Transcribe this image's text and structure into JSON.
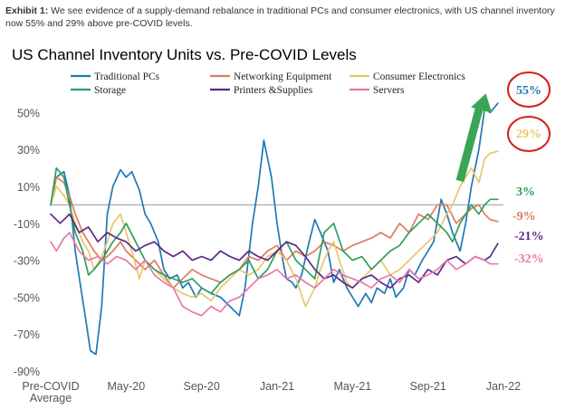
{
  "caption": {
    "label": "Exhibit 1:",
    "text": " We see evidence of a supply-demand rebalance in traditional PCs and consumer electronics, with US channel inventory now 55% and 29% above pre-COVID levels."
  },
  "chart_data": {
    "type": "line",
    "title": "US Channel Inventory Units vs. Pre-COVID Levels",
    "xlabel": "",
    "ylabel": "",
    "ylim": [
      -90,
      60
    ],
    "yticks": [
      50,
      30,
      10,
      -10,
      -30,
      -50,
      -70,
      -90
    ],
    "ytick_labels": [
      "50%",
      "30%",
      "10%",
      "-10%",
      "-30%",
      "-50%",
      "-70%",
      "-90%"
    ],
    "x_range": [
      0,
      24
    ],
    "xticks": [
      0,
      4,
      8,
      12,
      16,
      20,
      24
    ],
    "xtick_labels": [
      [
        "Pre-COVID",
        "Average"
      ],
      [
        "May-20"
      ],
      [
        "Sep-20"
      ],
      [
        "Jan-21"
      ],
      [
        "May-21"
      ],
      [
        "Sep-21"
      ],
      [
        "Jan-22"
      ]
    ],
    "reference_line": 0,
    "grid": false,
    "legend_position": "top",
    "series": [
      {
        "name": "Traditional PCs",
        "color": "#1f78b4",
        "end_label": "55%",
        "x": [
          0,
          0.3,
          0.7,
          1.0,
          1.3,
          1.6,
          1.9,
          2.1,
          2.4,
          2.7,
          3.0,
          3.3,
          3.7,
          4.0,
          4.3,
          4.7,
          5.0,
          5.3,
          5.7,
          6.0,
          6.3,
          6.7,
          7.0,
          7.3,
          7.7,
          8.0,
          8.5,
          9.0,
          9.5,
          10.0,
          10.3,
          10.7,
          11.0,
          11.3,
          11.7,
          12.0,
          12.3,
          12.5,
          12.8,
          13.0,
          13.3,
          13.7,
          14.0,
          14.3,
          14.7,
          15.0,
          15.3,
          15.7,
          16.0,
          16.3,
          16.7,
          17.0,
          17.3,
          17.7,
          18.0,
          18.3,
          18.7,
          19.0,
          19.3,
          19.7,
          20.0,
          20.3,
          20.7,
          21.0,
          21.3,
          21.7,
          22.0,
          22.3,
          22.7,
          23.0,
          23.3,
          23.7
        ],
        "values": [
          0,
          15,
          18,
          5,
          -25,
          -45,
          -65,
          -79,
          -81,
          -55,
          -5,
          10,
          19,
          15,
          18,
          8,
          -5,
          -10,
          -20,
          -35,
          -40,
          -38,
          -45,
          -42,
          -50,
          -45,
          -48,
          -50,
          -55,
          -60,
          -45,
          -10,
          10,
          35,
          15,
          -10,
          -30,
          -40,
          -42,
          -45,
          -38,
          -20,
          -8,
          -15,
          -25,
          -42,
          -35,
          -45,
          -50,
          -55,
          -48,
          -53,
          -45,
          -48,
          -40,
          -50,
          -45,
          -35,
          -38,
          -30,
          -25,
          -20,
          3,
          -5,
          -15,
          -25,
          -10,
          10,
          30,
          52,
          50,
          55
        ]
      },
      {
        "name": "Networking Equipment",
        "color": "#e07a5f",
        "end_label": "-9%",
        "x": [
          0,
          0.3,
          0.7,
          1.0,
          1.3,
          1.7,
          2.0,
          2.3,
          2.7,
          3.0,
          3.3,
          3.7,
          4.0,
          4.5,
          5.0,
          5.5,
          6.0,
          6.5,
          7.0,
          7.5,
          8.0,
          8.5,
          9.0,
          9.5,
          10.0,
          10.5,
          11.0,
          11.5,
          12.0,
          12.5,
          13.0,
          13.5,
          14.0,
          14.5,
          15.0,
          15.5,
          16.0,
          16.5,
          17.0,
          17.5,
          18.0,
          18.5,
          19.0,
          19.5,
          20.0,
          20.5,
          21.0,
          21.5,
          22.0,
          22.3,
          22.7,
          23.0,
          23.3,
          23.7
        ],
        "values": [
          0,
          15,
          12,
          5,
          -5,
          -15,
          -20,
          -25,
          -30,
          -28,
          -25,
          -20,
          -25,
          -30,
          -35,
          -30,
          -38,
          -45,
          -40,
          -35,
          -38,
          -40,
          -42,
          -38,
          -35,
          -28,
          -30,
          -25,
          -22,
          -30,
          -25,
          -28,
          -25,
          -20,
          -22,
          -25,
          -22,
          -20,
          -18,
          -15,
          -18,
          -10,
          -15,
          -5,
          -8,
          0,
          0,
          -10,
          -5,
          -2,
          0,
          -5,
          -8,
          -9
        ]
      },
      {
        "name": "Consumer Electronics",
        "color": "#e8c66a",
        "end_label": "29%",
        "x": [
          0,
          0.3,
          0.7,
          1.0,
          1.3,
          1.7,
          2.0,
          2.3,
          2.7,
          3.0,
          3.3,
          3.7,
          4.0,
          4.3,
          4.7,
          5.0,
          5.5,
          6.0,
          6.5,
          7.0,
          7.5,
          8.0,
          8.5,
          9.0,
          9.5,
          10.0,
          10.5,
          11.0,
          11.5,
          12.0,
          12.5,
          13.0,
          13.5,
          14.0,
          14.3,
          14.7,
          15.0,
          15.3,
          15.7,
          16.0,
          16.5,
          17.0,
          17.5,
          18.0,
          18.5,
          19.0,
          19.5,
          20.0,
          20.5,
          21.0,
          21.3,
          21.7,
          22.0,
          22.3,
          22.7,
          23.0,
          23.3,
          23.7
        ],
        "values": [
          0,
          10,
          5,
          0,
          -10,
          -20,
          -25,
          -35,
          -28,
          -20,
          -10,
          -5,
          -15,
          -25,
          -40,
          -30,
          -35,
          -40,
          -45,
          -48,
          -50,
          -48,
          -52,
          -45,
          -40,
          -35,
          -38,
          -35,
          -28,
          -25,
          -30,
          -40,
          -55,
          -45,
          -35,
          -25,
          -20,
          -30,
          -42,
          -45,
          -40,
          -35,
          -30,
          -38,
          -35,
          -30,
          -25,
          -20,
          -15,
          -5,
          0,
          10,
          15,
          20,
          12,
          25,
          28,
          29
        ]
      },
      {
        "name": "Storage",
        "color": "#2e9e5b",
        "end_label": "3%",
        "x": [
          0,
          0.3,
          0.7,
          1.0,
          1.3,
          1.7,
          2.0,
          2.3,
          2.7,
          3.0,
          3.3,
          3.7,
          4.0,
          4.5,
          5.0,
          5.5,
          6.0,
          6.5,
          7.0,
          7.5,
          8.0,
          8.5,
          9.0,
          9.5,
          10.0,
          10.5,
          11.0,
          11.5,
          12.0,
          12.5,
          13.0,
          13.5,
          14.0,
          14.5,
          15.0,
          15.5,
          16.0,
          16.5,
          17.0,
          17.5,
          18.0,
          18.5,
          19.0,
          19.5,
          20.0,
          20.5,
          21.0,
          21.3,
          21.7,
          22.0,
          22.3,
          22.7,
          23.0,
          23.3,
          23.7
        ],
        "values": [
          0,
          20,
          15,
          0,
          -15,
          -25,
          -38,
          -35,
          -30,
          -25,
          -20,
          -15,
          -10,
          -20,
          -30,
          -35,
          -38,
          -40,
          -42,
          -40,
          -45,
          -48,
          -42,
          -38,
          -35,
          -30,
          -40,
          -35,
          -25,
          -20,
          -30,
          -35,
          -40,
          -15,
          -10,
          -25,
          -30,
          -28,
          -35,
          -30,
          -25,
          -22,
          -15,
          -10,
          -5,
          -10,
          -15,
          -20,
          -10,
          -5,
          0,
          -5,
          0,
          3,
          3
        ]
      },
      {
        "name": "Printers &Supplies",
        "color": "#5b2a86",
        "end_label": "-21%",
        "x": [
          0,
          0.5,
          1.0,
          1.5,
          2.0,
          2.5,
          3.0,
          3.5,
          4.0,
          4.5,
          5.0,
          5.5,
          6.0,
          6.5,
          7.0,
          7.5,
          8.0,
          8.5,
          9.0,
          9.5,
          10.0,
          10.5,
          11.0,
          11.5,
          12.0,
          12.5,
          13.0,
          13.5,
          14.0,
          14.5,
          15.0,
          15.5,
          16.0,
          16.5,
          17.0,
          17.5,
          18.0,
          18.5,
          19.0,
          19.5,
          20.0,
          20.5,
          21.0,
          21.5,
          22.0,
          22.5,
          23.0,
          23.3,
          23.7
        ],
        "values": [
          -5,
          -10,
          -5,
          -15,
          -12,
          -20,
          -15,
          -18,
          -20,
          -25,
          -22,
          -20,
          -25,
          -28,
          -25,
          -30,
          -28,
          -30,
          -25,
          -28,
          -30,
          -25,
          -28,
          -30,
          -25,
          -20,
          -22,
          -28,
          -35,
          -40,
          -38,
          -42,
          -45,
          -40,
          -38,
          -42,
          -45,
          -40,
          -38,
          -42,
          -35,
          -38,
          -30,
          -28,
          -32,
          -28,
          -30,
          -28,
          -21
        ]
      },
      {
        "name": "Servers",
        "color": "#e878a8",
        "end_label": "-32%",
        "x": [
          0,
          0.3,
          0.7,
          1.0,
          1.5,
          2.0,
          2.5,
          3.0,
          3.5,
          4.0,
          4.5,
          5.0,
          5.5,
          6.0,
          6.5,
          7.0,
          7.5,
          8.0,
          8.5,
          9.0,
          9.5,
          10.0,
          10.5,
          11.0,
          11.5,
          12.0,
          12.5,
          13.0,
          13.5,
          14.0,
          14.5,
          15.0,
          15.5,
          16.0,
          16.5,
          17.0,
          17.5,
          18.0,
          18.5,
          19.0,
          19.5,
          20.0,
          20.5,
          21.0,
          21.5,
          22.0,
          22.5,
          23.0,
          23.3,
          23.7
        ],
        "values": [
          -20,
          -25,
          -18,
          -15,
          -25,
          -30,
          -28,
          -32,
          -28,
          -30,
          -35,
          -30,
          -38,
          -42,
          -45,
          -55,
          -58,
          -60,
          -55,
          -58,
          -52,
          -50,
          -45,
          -40,
          -38,
          -35,
          -40,
          -38,
          -42,
          -45,
          -40,
          -35,
          -38,
          -40,
          -42,
          -45,
          -40,
          -38,
          -42,
          -35,
          -40,
          -38,
          -35,
          -30,
          -35,
          -32,
          -28,
          -30,
          -32,
          -32
        ]
      }
    ]
  }
}
